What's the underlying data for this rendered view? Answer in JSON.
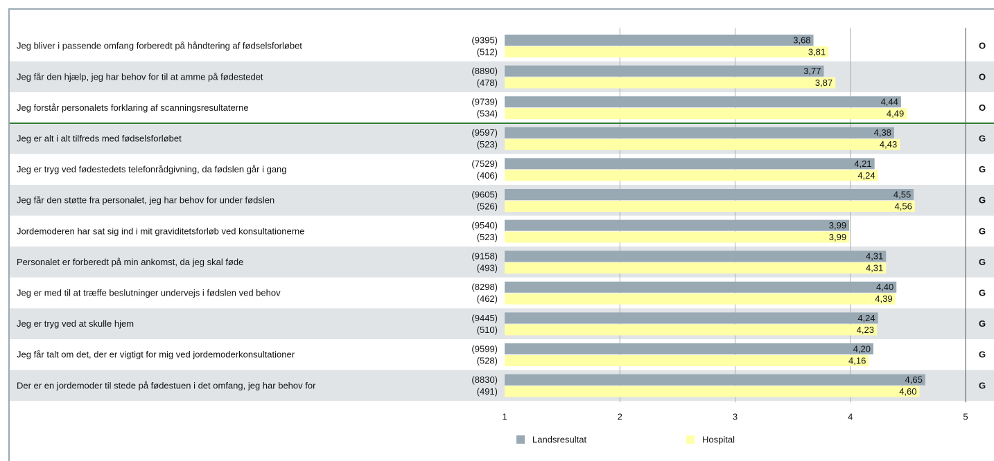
{
  "chart_data": {
    "type": "bar",
    "orientation": "horizontal",
    "categories": [
      "Jeg bliver i passende omfang forberedt på håndtering af fødselsforløbet",
      "Jeg får den hjælp, jeg har behov for til at amme på fødestedet",
      "Jeg forstår personalets forklaring af scanningsresultaterne",
      "Jeg er alt i alt tilfreds med fødselsforløbet",
      "Jeg er tryg ved fødestedets telefonrådgivning, da fødslen går i gang",
      "Jeg får den støtte fra personalet, jeg har behov for under fødslen",
      "Jordemoderen har sat sig ind i mit graviditetsforløb ved konsultationerne",
      "Personalet er forberedt på min ankomst, da jeg skal føde",
      "Jeg er med til at træffe beslutninger undervejs i fødslen ved behov",
      "Jeg er tryg ved at skulle hjem",
      "Jeg får talt om det, der er vigtigt for mig ved jordemoderkonsultationer",
      "Der er en jordemoder til stede på fødestuen i det omfang, jeg har behov for"
    ],
    "codes": [
      "O",
      "O",
      "O",
      "G",
      "G",
      "G",
      "G",
      "G",
      "G",
      "G",
      "G",
      "G"
    ],
    "series": [
      {
        "name": "Landsresultat",
        "color": "#98a9b4",
        "values": [
          3.68,
          3.77,
          4.44,
          4.38,
          4.21,
          4.55,
          3.99,
          4.31,
          4.4,
          4.24,
          4.2,
          4.65
        ],
        "value_labels": [
          "3,68",
          "3,77",
          "4,44",
          "4,38",
          "4,21",
          "4,55",
          "3,99",
          "4,31",
          "4,40",
          "4,24",
          "4,20",
          "4,65"
        ],
        "n_labels": [
          "(9395)",
          "(8890)",
          "(9739)",
          "(9597)",
          "(7529)",
          "(9605)",
          "(9540)",
          "(9158)",
          "(8298)",
          "(9445)",
          "(9599)",
          "(8830)"
        ]
      },
      {
        "name": "Hospital",
        "color": "#ffffa6",
        "values": [
          3.81,
          3.87,
          4.49,
          4.43,
          4.24,
          4.56,
          3.99,
          4.31,
          4.39,
          4.23,
          4.16,
          4.6
        ],
        "value_labels": [
          "3,81",
          "3,87",
          "4,49",
          "4,43",
          "4,24",
          "4,56",
          "3,99",
          "4,31",
          "4,39",
          "4,23",
          "4,16",
          "4,60"
        ],
        "n_labels": [
          "(512)",
          "(478)",
          "(534)",
          "(523)",
          "(406)",
          "(526)",
          "(523)",
          "(493)",
          "(462)",
          "(510)",
          "(528)",
          "(491)"
        ]
      }
    ],
    "xlim": [
      1,
      5
    ],
    "xticks": [
      1,
      2,
      3,
      4,
      5
    ],
    "grid": true
  }
}
